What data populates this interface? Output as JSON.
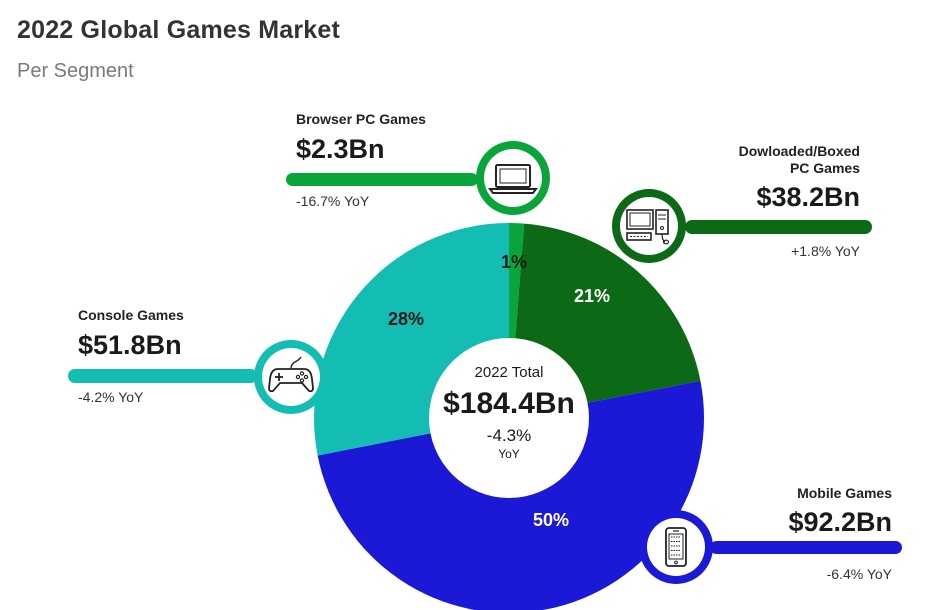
{
  "header": {
    "title": "2022 Global Games Market",
    "subtitle": "Per Segment"
  },
  "center": {
    "label": "2022 Total",
    "value": "$184.4Bn",
    "change": "-4.3%",
    "change_unit": "YoY"
  },
  "segments": [
    {
      "name": "Browser PC Games",
      "value": "$2.3Bn",
      "yoy": "-16.7% YoY",
      "icon": "laptop-icon"
    },
    {
      "name": "Dowloaded/Boxed PC Games",
      "name_line1": "Dowloaded/Boxed",
      "name_line2": "PC Games",
      "value": "$38.2Bn",
      "yoy": "+1.8% YoY",
      "icon": "desktop-computer-icon"
    },
    {
      "name": "Mobile Games",
      "value": "$92.2Bn",
      "yoy": "-6.4% YoY",
      "icon": "smartphone-icon"
    },
    {
      "name": "Console Games",
      "value": "$51.8Bn",
      "yoy": "-4.2% YoY",
      "icon": "gamepad-icon"
    }
  ],
  "chart_data": {
    "type": "pie",
    "title": "2022 Global Games Market",
    "subtitle": "Per Segment",
    "categories": [
      "Browser PC Games",
      "Dowloaded/Boxed PC Games",
      "Mobile Games",
      "Console Games"
    ],
    "values": [
      2.3,
      38.2,
      92.2,
      51.8
    ],
    "percent_labels": [
      "1%",
      "21%",
      "50%",
      "28%"
    ],
    "unit": "Bn",
    "total": 184.4,
    "colors": [
      "#0aa53a",
      "#0c6a16",
      "#1c19d6",
      "#13bdb3"
    ]
  }
}
